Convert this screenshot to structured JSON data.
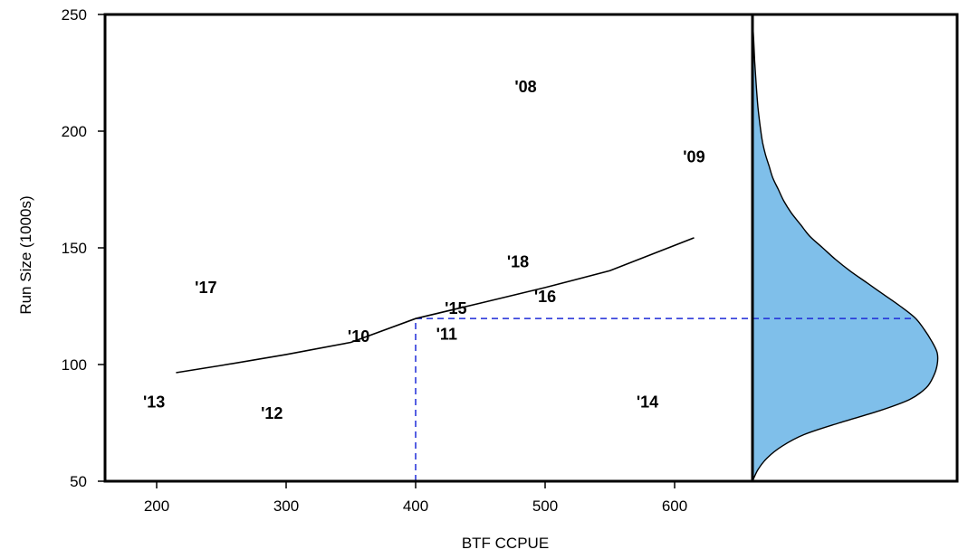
{
  "chart_data": {
    "type": "scatter",
    "title": "",
    "xlabel": "BTF CCPUE",
    "ylabel": "Run Size (1000s)",
    "xlim": [
      160,
      662
    ],
    "ylim": [
      50,
      250
    ],
    "xticks": [
      200,
      300,
      400,
      500,
      600
    ],
    "yticks": [
      50,
      100,
      150,
      200,
      250
    ],
    "grid": false,
    "points": [
      {
        "label": "'08",
        "x": 485,
        "y": 219
      },
      {
        "label": "'09",
        "x": 615,
        "y": 189
      },
      {
        "label": "'10",
        "x": 356,
        "y": 112
      },
      {
        "label": "'11",
        "x": 424,
        "y": 113
      },
      {
        "label": "'12",
        "x": 289,
        "y": 79
      },
      {
        "label": "'13",
        "x": 198,
        "y": 84
      },
      {
        "label": "'14",
        "x": 579,
        "y": 84
      },
      {
        "label": "'15",
        "x": 431,
        "y": 124
      },
      {
        "label": "'16",
        "x": 500,
        "y": 129
      },
      {
        "label": "'17",
        "x": 238,
        "y": 133
      },
      {
        "label": "'18",
        "x": 479,
        "y": 144
      }
    ],
    "fit_line": {
      "x": [
        215,
        250,
        300,
        350,
        400,
        450,
        500,
        550,
        615
      ],
      "y": [
        96.5,
        99.6,
        104.3,
        109.5,
        119.7,
        126.3,
        133.0,
        140.2,
        154.3
      ]
    },
    "forecast": {
      "x": 400,
      "y": 119.7
    },
    "distribution": {
      "color": "#7fbfea",
      "y": [
        50,
        55,
        60,
        65,
        70,
        75,
        80,
        85,
        90,
        95,
        100,
        105,
        110,
        115,
        120,
        125,
        130,
        135,
        140,
        145,
        150,
        155,
        160,
        165,
        170,
        175,
        180,
        185,
        190,
        195,
        200,
        210,
        220,
        230,
        240,
        248
      ],
      "density": [
        0.0,
        0.03,
        0.08,
        0.16,
        0.28,
        0.47,
        0.68,
        0.85,
        0.94,
        0.98,
        1.0,
        1.0,
        0.97,
        0.93,
        0.88,
        0.8,
        0.71,
        0.62,
        0.53,
        0.45,
        0.38,
        0.31,
        0.26,
        0.21,
        0.17,
        0.14,
        0.11,
        0.09,
        0.07,
        0.055,
        0.045,
        0.03,
        0.02,
        0.012,
        0.006,
        0.0
      ]
    }
  }
}
